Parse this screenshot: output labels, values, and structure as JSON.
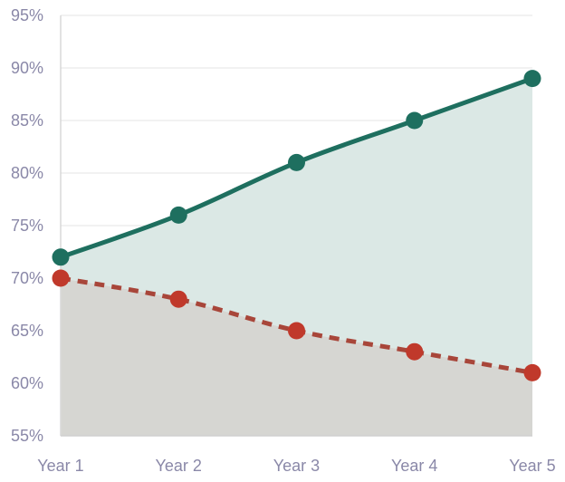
{
  "chart_data": {
    "type": "area",
    "categories": [
      "Year 1",
      "Year 2",
      "Year 3",
      "Year 4",
      "Year 5"
    ],
    "series": [
      {
        "values": [
          72,
          76,
          81,
          85,
          89
        ],
        "color": "#1e6f5f",
        "line_style": "solid",
        "fill": "#dbe8e5"
      },
      {
        "values": [
          70,
          68,
          65,
          63,
          61
        ],
        "color": "#c0392b",
        "line_style": "dashed",
        "line_color": "#a8463a",
        "fill": "#d6d6d2"
      }
    ],
    "y_ticks": [
      "55%",
      "60%",
      "65%",
      "70%",
      "75%",
      "80%",
      "85%",
      "90%",
      "95%"
    ],
    "ylim": [
      55,
      95
    ],
    "y_unit": "%",
    "grid": true,
    "title": "",
    "xlabel": "",
    "ylabel": ""
  }
}
